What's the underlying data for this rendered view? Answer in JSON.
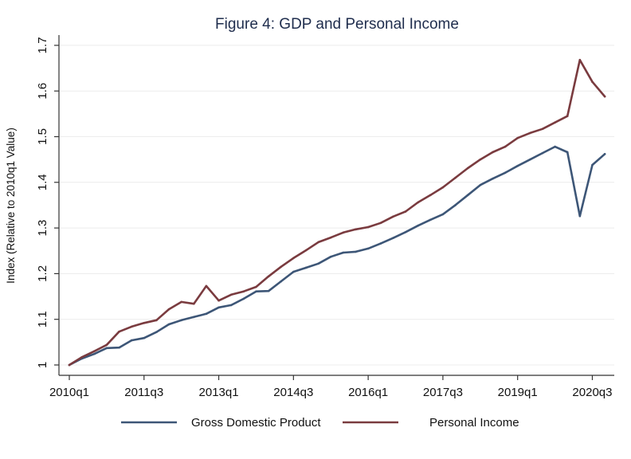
{
  "chart_data": {
    "type": "line",
    "title": "Figure 4: GDP and Personal Income",
    "xlabel": "",
    "ylabel": "Index (Relative to 2010q1 Value)",
    "ylim": [
      1.0,
      1.7
    ],
    "yticks": [
      1,
      1.1,
      1.2,
      1.3,
      1.4,
      1.5,
      1.6,
      1.7
    ],
    "ytick_labels": [
      "1",
      "1.1",
      "1.2",
      "1.3",
      "1.4",
      "1.5",
      "1.6",
      "1.7"
    ],
    "x_start": "2010q1",
    "x_end": "2021q1",
    "xticks": [
      {
        "label": "2010q1",
        "index": 0
      },
      {
        "label": "2011q3",
        "index": 6
      },
      {
        "label": "2013q1",
        "index": 12
      },
      {
        "label": "2014q3",
        "index": 18
      },
      {
        "label": "2016q1",
        "index": 24
      },
      {
        "label": "2017q3",
        "index": 30
      },
      {
        "label": "2019q1",
        "index": 36
      },
      {
        "label": "2020q3",
        "index": 42
      }
    ],
    "grid": true,
    "legend_position": "bottom",
    "series": [
      {
        "name": "Gross Domestic Product",
        "color": "#3d5677",
        "values": [
          1.0,
          1.014,
          1.024,
          1.037,
          1.038,
          1.054,
          1.059,
          1.072,
          1.089,
          1.098,
          1.105,
          1.112,
          1.126,
          1.131,
          1.145,
          1.161,
          1.162,
          1.183,
          1.204,
          1.213,
          1.222,
          1.237,
          1.246,
          1.248,
          1.255,
          1.266,
          1.278,
          1.291,
          1.305,
          1.318,
          1.33,
          1.35,
          1.372,
          1.394,
          1.408,
          1.421,
          1.436,
          1.45,
          1.464,
          1.478,
          1.466,
          1.326,
          1.438,
          1.462
        ]
      },
      {
        "name": "Personal Income",
        "color": "#7a3b3f",
        "values": [
          1.0,
          1.017,
          1.03,
          1.044,
          1.073,
          1.084,
          1.092,
          1.098,
          1.122,
          1.138,
          1.134,
          1.173,
          1.141,
          1.154,
          1.161,
          1.171,
          1.194,
          1.215,
          1.234,
          1.251,
          1.269,
          1.279,
          1.29,
          1.297,
          1.302,
          1.311,
          1.325,
          1.336,
          1.356,
          1.372,
          1.389,
          1.41,
          1.431,
          1.45,
          1.466,
          1.478,
          1.497,
          1.508,
          1.517,
          1.531,
          1.545,
          1.668,
          1.62,
          1.588
        ]
      }
    ]
  }
}
